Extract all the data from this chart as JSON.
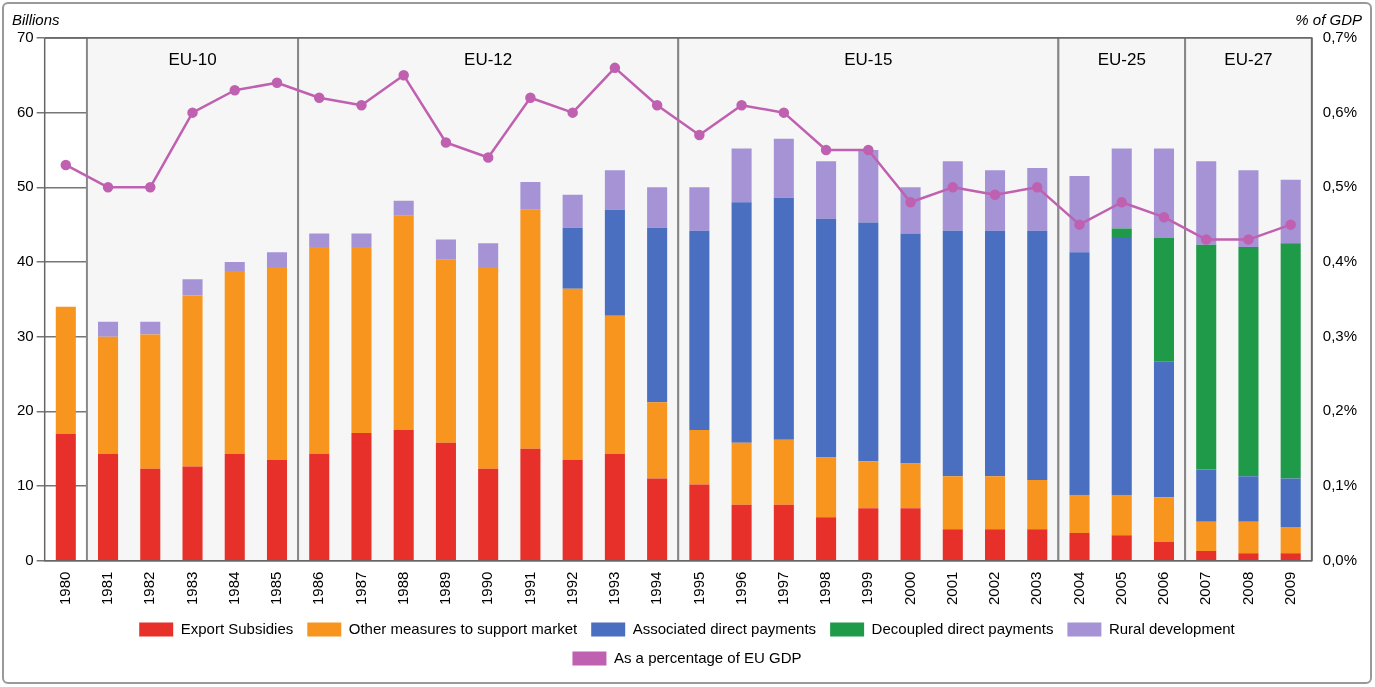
{
  "chart_data": {
    "type": "bar",
    "stacked": true,
    "ylabel": "Billions",
    "y2label": "% of GDP",
    "categories": [
      "1980",
      "1981",
      "1982",
      "1983",
      "1984",
      "1985",
      "1986",
      "1987",
      "1988",
      "1989",
      "1990",
      "1991",
      "1992",
      "1993",
      "1994",
      "1995",
      "1996",
      "1997",
      "1998",
      "1999",
      "2000",
      "2001",
      "2002",
      "2003",
      "2004",
      "2005",
      "2006",
      "2007",
      "2008",
      "2009"
    ],
    "series": [
      {
        "name": "Export Subsidies",
        "color": "#e8302a",
        "values": [
          17,
          14.3,
          12.3,
          12.6,
          14.3,
          13.5,
          14.3,
          17.1,
          17.5,
          15.8,
          12.3,
          15,
          13.5,
          14.3,
          11,
          10.2,
          7.5,
          7.5,
          5.8,
          7,
          7,
          4.2,
          4.2,
          4.2,
          3.7,
          3.4,
          2.5,
          1.3,
          1,
          1
        ]
      },
      {
        "name": "Other measures to support market",
        "color": "#f7951e",
        "values": [
          17,
          15.7,
          18,
          22.9,
          24.5,
          25.7,
          27.7,
          24.9,
          28.7,
          24.5,
          26.9,
          32,
          22.9,
          18.5,
          10.2,
          7.3,
          8.3,
          8.7,
          8,
          6.3,
          6,
          7.1,
          7.1,
          6.6,
          5.1,
          5.4,
          6,
          3.9,
          4.2,
          3.5
        ]
      },
      {
        "name": "Associated direct payments",
        "color": "#4a6fc0",
        "values": [
          null,
          null,
          null,
          null,
          null,
          null,
          null,
          null,
          null,
          null,
          null,
          null,
          8.2,
          14.2,
          23.4,
          26.7,
          32.2,
          32.4,
          32,
          32,
          30.8,
          32.9,
          32.9,
          33.4,
          32.5,
          34.4,
          18.2,
          7,
          6.1,
          6.5
        ]
      },
      {
        "name": "Decoupled direct payments",
        "color": "#1f9a48",
        "values": [
          null,
          null,
          null,
          null,
          null,
          null,
          null,
          null,
          null,
          null,
          null,
          null,
          null,
          null,
          null,
          null,
          null,
          null,
          null,
          null,
          null,
          null,
          null,
          null,
          null,
          1.3,
          16.5,
          30.1,
          30.7,
          31.5
        ]
      },
      {
        "name": "Rural development",
        "color": "#a593d6",
        "values": [
          null,
          2,
          1.7,
          2.2,
          1.2,
          2.1,
          1.8,
          1.8,
          2,
          2.7,
          3.3,
          3.7,
          4.4,
          5.3,
          5.4,
          5.8,
          7.2,
          7.9,
          7.7,
          9.7,
          6.2,
          9.3,
          8.1,
          8.4,
          10.2,
          10.7,
          12,
          11.2,
          10.3,
          8.5
        ]
      },
      {
        "name": "As a percentage of EU GDP",
        "type": "line",
        "axis": "y2",
        "color": "#c060b0",
        "marker": "circle",
        "values": [
          0.53,
          0.5,
          0.5,
          0.6,
          0.63,
          0.64,
          0.62,
          0.61,
          0.65,
          0.56,
          0.54,
          0.62,
          0.6,
          0.66,
          0.61,
          0.57,
          0.61,
          0.6,
          0.55,
          0.55,
          0.48,
          0.5,
          0.49,
          0.5,
          0.45,
          0.48,
          0.46,
          0.43,
          0.43,
          0.45
        ]
      }
    ],
    "ylim": [
      0,
      70
    ],
    "yticks": [
      0,
      10,
      20,
      30,
      40,
      50,
      60,
      70
    ],
    "y2lim": [
      0,
      0.7
    ],
    "y2ticks": [
      {
        "value": 0,
        "label": "0,0%"
      },
      {
        "value": 0.1,
        "label": "0,1%"
      },
      {
        "value": 0.2,
        "label": "0,2%"
      },
      {
        "value": 0.3,
        "label": "0,3%"
      },
      {
        "value": 0.4,
        "label": "0,4%"
      },
      {
        "value": 0.5,
        "label": "0,5%"
      },
      {
        "value": 0.6,
        "label": "0,6%"
      },
      {
        "value": 0.7,
        "label": "0,7%"
      }
    ],
    "bands": [
      {
        "axis": "x",
        "from": "1981",
        "to": "1985",
        "label": "EU-10",
        "color": "#f6f6f6"
      },
      {
        "axis": "x",
        "from": "1986",
        "to": "1994",
        "label": "EU-12",
        "color": "#f6f6f6"
      },
      {
        "axis": "x",
        "from": "1995",
        "to": "2003",
        "label": "EU-15",
        "color": "#f6f6f6"
      },
      {
        "axis": "x",
        "from": "2004",
        "to": "2006",
        "label": "EU-25",
        "color": "#f6f6f6"
      },
      {
        "axis": "x",
        "from": "2007",
        "to": "2009",
        "label": "EU-27",
        "color": "#f6f6f6"
      }
    ],
    "grid": "y",
    "legend": "bottom"
  }
}
